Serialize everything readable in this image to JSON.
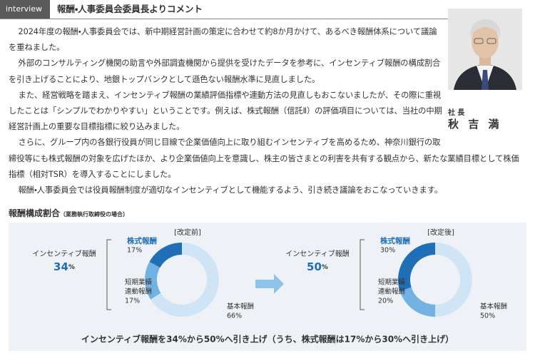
{
  "header": {
    "tag": "interview",
    "title": "報酬・人事委員会委員長よりコメント"
  },
  "person": {
    "role": "社 長",
    "name": "秋 吉 満"
  },
  "paragraphs": [
    "2024年度の報酬・人事委員会では、新中期経営計画の策定に合わせて約8か月かけて、あるべき報酬体系について議論を重ねました。",
    "外部のコンサルティング機関の助言や外部調査機関から提供を受けたデータを参考に、インセンティブ報酬の構成割合を引き上げることにより、地銀トップバンクとして遜色ない報酬水準に見直しました。",
    "また、経営戦略を踏まえ、インセンティブ報酬の業績評価指標や連動方法の見直しもおこないましたが、その際に重視したことは「シンプルでわかりやすい」ということです。例えば、株式報酬（信託Ⅱ）の評価項目については、当社の中期経営計画上の重要な目標指標に絞り込みました。",
    "さらに、グループ内の各銀行役員が同じ目線で企業価値向上に取り組むインセンティブを高めるため、神奈川銀行の取締役等にも株式報酬の対象を広げたほか、より企業価値向上を意識し、株主の皆さまとの利害を共有する観点から、新たな業績目標として株価指標（相対TSR）を導入することにしました。",
    "報酬・人事委員会では役員報酬制度が適切なインセンティブとして機能するよう、引き続き議論をおこなっていきます。"
  ],
  "section": {
    "title": "報酬構成割合",
    "note": "（業務執行取締役の場合）"
  },
  "charts": [
    {
      "label": "[改定前]",
      "incentive": {
        "label": "インセンティブ報酬",
        "value": "34",
        "unit": "%"
      },
      "segments": [
        {
          "name": [
            "株式報酬"
          ],
          "value": 17,
          "value_label": "17%",
          "color": "#1f6fb6"
        },
        {
          "name": [
            "短期業績",
            "連動報酬"
          ],
          "value": 17,
          "value_label": "17%",
          "color": "#72b2e2"
        },
        {
          "name": [
            "基本報酬"
          ],
          "value": 66,
          "value_label": "66%",
          "color": "#cfe4f4"
        }
      ]
    },
    {
      "label": "[改定後]",
      "incentive": {
        "label": "インセンティブ報酬",
        "value": "50",
        "unit": "%"
      },
      "segments": [
        {
          "name": [
            "株式報酬"
          ],
          "value": 30,
          "value_label": "30%",
          "color": "#1f6fb6"
        },
        {
          "name": [
            "短期業績",
            "連動報酬"
          ],
          "value": 20,
          "value_label": "20%",
          "color": "#72b2e2"
        },
        {
          "name": [
            "基本報酬"
          ],
          "value": 50,
          "value_label": "50%",
          "color": "#cfe4f4"
        }
      ]
    }
  ],
  "footer": "インセンティブ報酬を34%から50%へ引き上げ（うち、株式報酬は17%から30%へ引き上げ）"
}
